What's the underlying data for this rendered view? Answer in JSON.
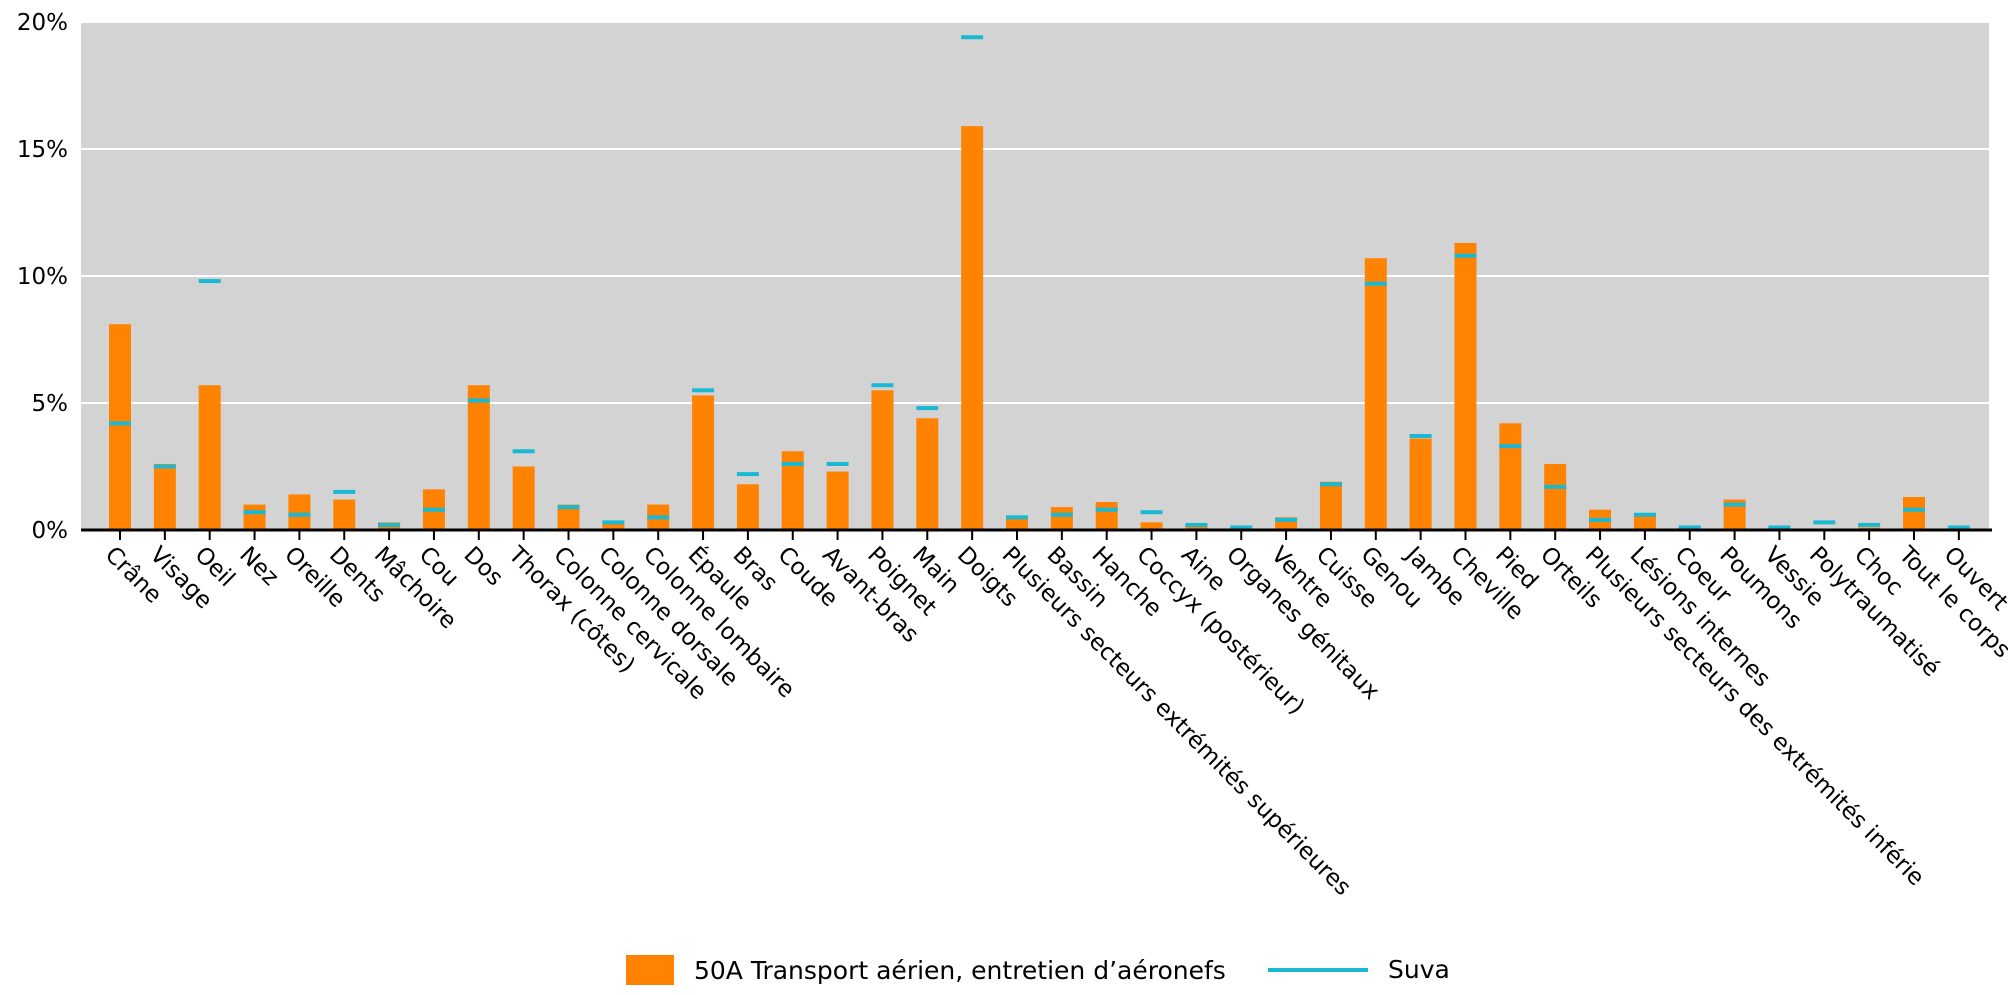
{
  "chart_data": {
    "type": "bar",
    "y_ticks": [
      "0%",
      "5%",
      "10%",
      "15%",
      "20%"
    ],
    "ylim": [
      0,
      20
    ],
    "grid": true,
    "legend_position": "bottom",
    "categories": [
      "Crâne",
      "Visage",
      "Oeil",
      "Nez",
      "Oreille",
      "Dents",
      "Mâchoire",
      "Cou",
      "Dos",
      "Thorax (côtes)",
      "Colonne cervicale",
      "Colonne dorsale",
      "Colonne lombaire",
      "Épaule",
      "Bras",
      "Coude",
      "Avant-bras",
      "Poignet",
      "Main",
      "Doigts",
      "Plusieurs secteurs extrémités supérieures",
      "Bassin",
      "Hanche",
      "Coccyx (postérieur)",
      "Aine",
      "Organes génitaux",
      "Ventre",
      "Cuisse",
      "Genou",
      "Jambe",
      "Cheville",
      "Pied",
      "Orteils",
      "Plusieurs secteurs des extrémités inférie",
      "Lésions internes",
      "Coeur",
      "Poumons",
      "Vessie",
      "Polytraumatisé",
      "Choc",
      "Tout le corps",
      "Ouvert"
    ],
    "series": [
      {
        "name": "50A Transport aérien, entretien d’aéronefs",
        "kind": "bar",
        "color": "#ff8200",
        "values": [
          8.1,
          2.6,
          5.7,
          1.0,
          1.4,
          1.2,
          0.3,
          1.6,
          5.7,
          2.5,
          1.0,
          0.3,
          1.0,
          5.3,
          1.8,
          3.1,
          2.3,
          5.5,
          4.4,
          15.9,
          0.5,
          0.9,
          1.1,
          0.3,
          0.2,
          0.0,
          0.5,
          1.9,
          10.7,
          3.6,
          11.3,
          4.2,
          2.6,
          0.8,
          0.6,
          0.0,
          1.2,
          0.0,
          0.0,
          0.1,
          1.3,
          0.0
        ]
      },
      {
        "name": "Suva",
        "kind": "marker",
        "color": "#19b8d3",
        "values": [
          4.2,
          2.5,
          9.8,
          0.7,
          0.6,
          1.5,
          0.2,
          0.8,
          5.1,
          3.1,
          0.9,
          0.3,
          0.5,
          5.5,
          2.2,
          2.6,
          2.6,
          5.7,
          4.8,
          19.4,
          0.5,
          0.6,
          0.8,
          0.7,
          0.2,
          0.1,
          0.4,
          1.8,
          9.7,
          3.7,
          10.8,
          3.3,
          1.7,
          0.4,
          0.6,
          0.1,
          1.0,
          0.1,
          0.3,
          0.2,
          0.8,
          0.1
        ]
      }
    ]
  }
}
